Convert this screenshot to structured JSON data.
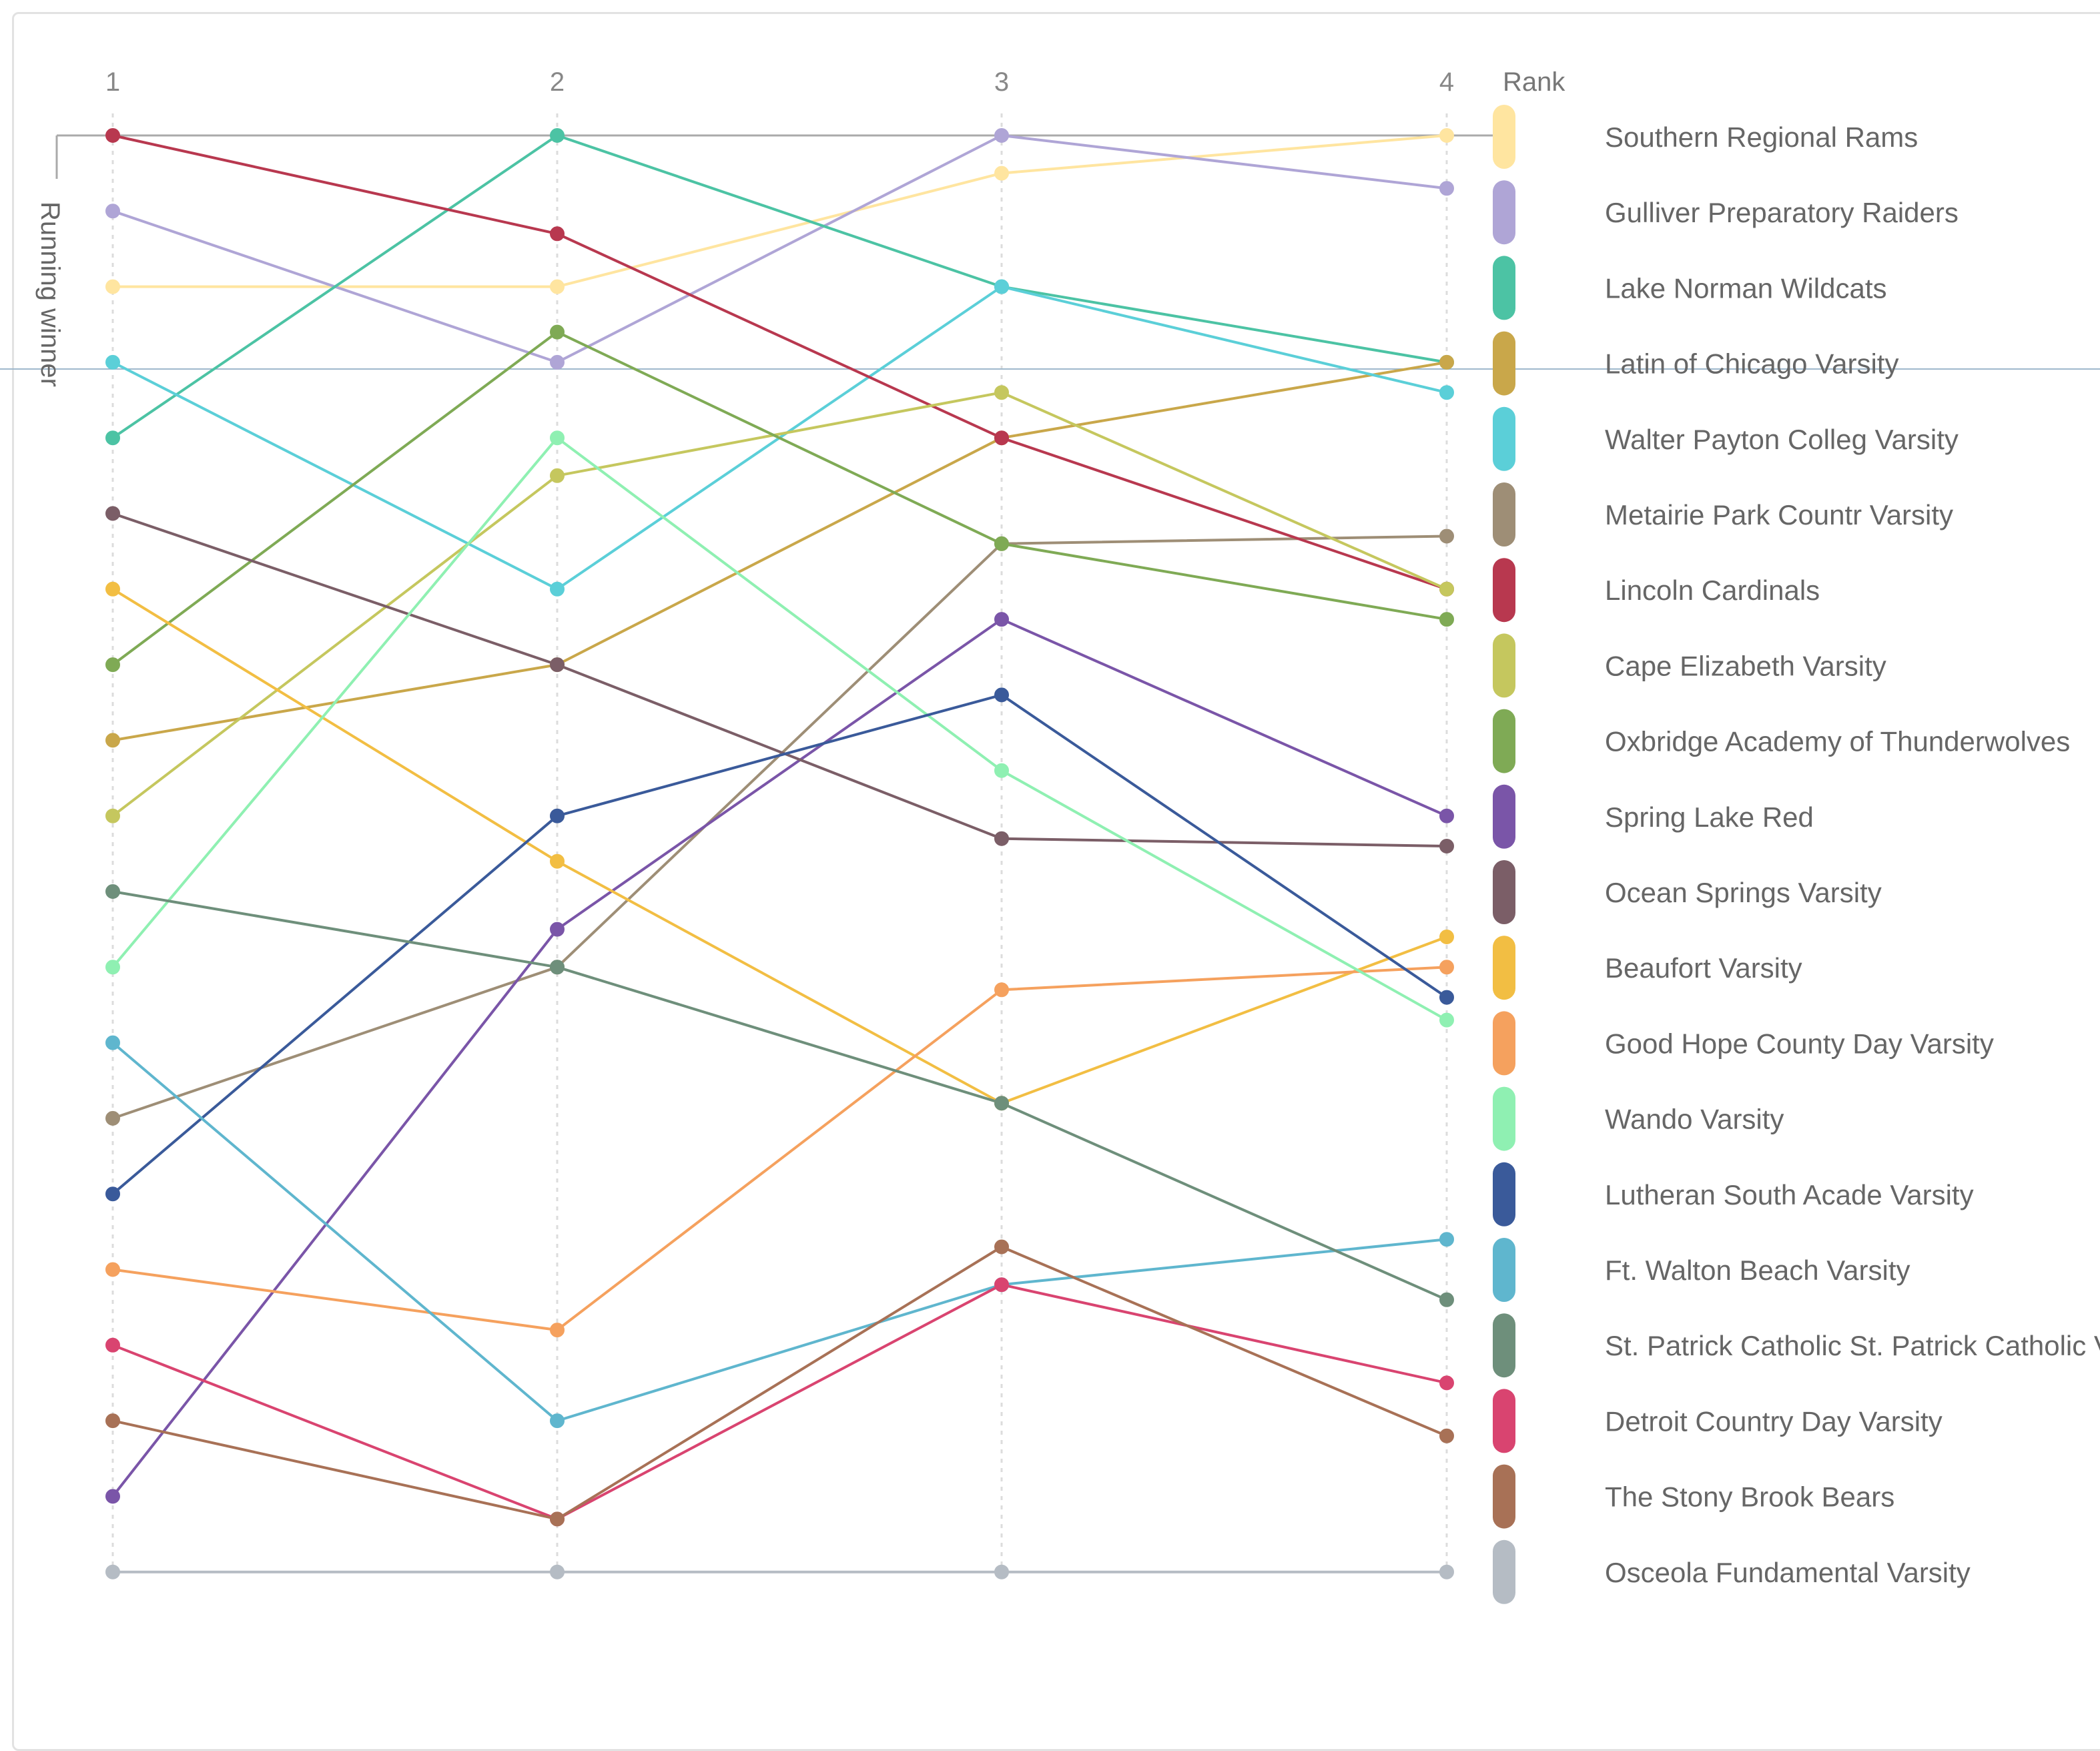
{
  "chart_data": {
    "type": "line",
    "x": [
      "1",
      "2",
      "3",
      "4"
    ],
    "ylabel": "Running winner",
    "legend_title": "Rank",
    "y_scale": "rank, 1 at top",
    "grid": "vertical dotted lines at each x",
    "legend_position": "right",
    "series": [
      {
        "name": "Southern Regional Rams",
        "color": "#FFE5A0",
        "values": [
          3,
          3,
          1.5,
          1
        ]
      },
      {
        "name": "Gulliver Preparatory Raiders",
        "color": "#AFA5D6",
        "values": [
          2,
          4,
          1,
          1.7
        ]
      },
      {
        "name": "Lake Norman Wildcats",
        "color": "#4CC3A4",
        "values": [
          5,
          1,
          3,
          4
        ]
      },
      {
        "name": "Latin of Chicago Varsity",
        "color": "#C9A74A",
        "values": [
          9,
          8,
          5,
          4
        ]
      },
      {
        "name": "Walter Payton Colleg Varsity",
        "color": "#5BCFD8",
        "values": [
          4,
          7,
          3,
          4.4
        ]
      },
      {
        "name": "Metairie Park Countr Varsity",
        "color": "#9E8E76",
        "values": [
          14,
          12,
          6.4,
          6.3
        ]
      },
      {
        "name": "Lincoln Cardinals",
        "color": "#B8384F",
        "values": [
          1,
          2.3,
          5,
          7
        ]
      },
      {
        "name": "Cape Elizabeth Varsity",
        "color": "#C5C75E",
        "values": [
          10,
          5.5,
          4.4,
          7
        ]
      },
      {
        "name": "Oxbridge Academy of Thunderwolves",
        "color": "#7FAA55",
        "values": [
          8,
          3.6,
          6.4,
          7.4
        ]
      },
      {
        "name": "Spring Lake Red",
        "color": "#7A55A8",
        "values": [
          19,
          11.5,
          7.4,
          10
        ]
      },
      {
        "name": "Ocean Springs Varsity",
        "color": "#7B5E67",
        "values": [
          6,
          8,
          10.3,
          10.4
        ]
      },
      {
        "name": "Beaufort Varsity",
        "color": "#F2BE43",
        "values": [
          7,
          10.6,
          13.8,
          11.6
        ]
      },
      {
        "name": "Good Hope County Day Varsity",
        "color": "#F5A15E",
        "values": [
          16,
          16.8,
          12.3,
          12
        ]
      },
      {
        "name": "Wando Varsity",
        "color": "#8FF0B2",
        "values": [
          12,
          5,
          9.4,
          12.7
        ]
      },
      {
        "name": "Lutheran South Acade Varsity",
        "color": "#3A5A9A",
        "values": [
          15,
          10,
          8.4,
          12.4
        ]
      },
      {
        "name": "Ft. Walton Beach Varsity",
        "color": "#5FB6CE",
        "values": [
          13,
          18,
          16.2,
          15.6
        ]
      },
      {
        "name": "St. Patrick Catholic St. Patrick Catholic Varsity",
        "color": "#6E8F7B",
        "values": [
          11,
          12,
          13.8,
          16.4
        ]
      },
      {
        "name": "Detroit Country Day Varsity",
        "color": "#D94470",
        "values": [
          17,
          19.3,
          16.2,
          17.5
        ]
      },
      {
        "name": "The Stony Brook Bears",
        "color": "#A87156",
        "values": [
          18,
          19.3,
          15.7,
          18.2
        ]
      },
      {
        "name": "Osceola Fundamental Varsity",
        "color": "#B5BCC4",
        "values": [
          20,
          20,
          20,
          20
        ]
      }
    ]
  }
}
